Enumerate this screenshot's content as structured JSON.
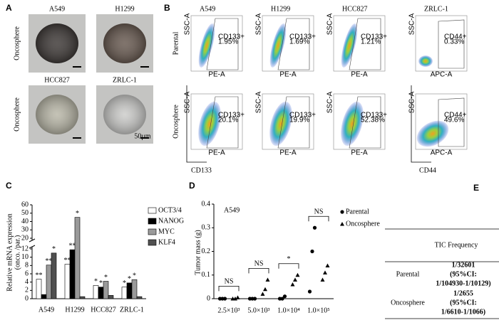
{
  "panel_a": {
    "letter": "A",
    "images": [
      {
        "label": "A549"
      },
      {
        "label": "H1299"
      },
      {
        "label": "HCC827"
      },
      {
        "label": "ZRLC-1"
      }
    ],
    "row_labels": [
      "Oncosphere",
      "Oncosphere"
    ],
    "scale_bar": "50μm"
  },
  "panel_b": {
    "letter": "B",
    "row_labels": [
      "Parental",
      "Oncosphere"
    ],
    "markers": [
      "CD133",
      "CD44"
    ],
    "columns": [
      {
        "label": "A549",
        "x_axis": "PE-A",
        "y_axis": "SSC-A",
        "gates": [
          [
            "CD133+",
            "1.95%"
          ],
          [
            "CD133+",
            "20.1%"
          ]
        ]
      },
      {
        "label": "H1299",
        "x_axis": "PE-A",
        "y_axis": "SSC-A",
        "gates": [
          [
            "CD133+",
            "1.69%"
          ],
          [
            "CD133+",
            "19.9%"
          ]
        ]
      },
      {
        "label": "HCC827",
        "x_axis": "PE-A",
        "y_axis": "SSC-A",
        "gates": [
          [
            "CD133+",
            "1.21%"
          ],
          [
            "CD133+",
            "52.38%"
          ]
        ]
      },
      {
        "label": "ZRLC-1",
        "x_axis": "APC-A",
        "y_axis": "SSC-A",
        "gates": [
          [
            "CD44+",
            "0.33%"
          ],
          [
            "CD44+",
            "49.6%"
          ]
        ]
      }
    ]
  },
  "chart_data": [
    {
      "type": "bar",
      "label": "C",
      "y_label": [
        "Relative mRNA expression",
        "(onco. /par.)"
      ],
      "categories": [
        "A549",
        "H1299",
        "HCC827",
        "ZRLC-1"
      ],
      "series": [
        {
          "name": "OCT3/4",
          "color": "#ffffff",
          "values": [
            4.7,
            8.3,
            3.2,
            2.8
          ],
          "significance": [
            "**",
            "**",
            "*",
            "*"
          ]
        },
        {
          "name": "NANOG",
          "color": "#000000",
          "values": [
            1.0,
            11.8,
            2.8,
            3.8
          ],
          "significance": [
            null,
            "**",
            "*",
            "*"
          ]
        },
        {
          "name": "MYC",
          "color": "#9a9a9a",
          "values": [
            8.1,
            45,
            4.2,
            4.6
          ],
          "significance": [
            "**",
            "*",
            "*",
            "*"
          ]
        },
        {
          "name": "KLF4",
          "color": "#505050",
          "values": [
            11,
            0.5,
            0.8,
            0.5
          ],
          "significance": [
            "*",
            null,
            null,
            null
          ]
        }
      ],
      "ylim": [
        0,
        60
      ],
      "ybreak": [
        12,
        20
      ],
      "yticks": [
        0,
        2,
        4,
        6,
        8,
        10,
        12,
        20,
        30,
        40,
        50,
        60
      ],
      "legend": "right"
    },
    {
      "type": "dot",
      "label": "D",
      "title": "A549",
      "y_label": "Tumor mass (g)",
      "categories": [
        "2.5×10³",
        "5.0×10³",
        "1.0×10⁴",
        "1.0×10⁵"
      ],
      "series": [
        {
          "name": "Parental",
          "marker": "circle",
          "color": "#000000",
          "values": [
            [
              0,
              0,
              0
            ],
            [
              0,
              0,
              0
            ],
            [
              0,
              0,
              0.01
            ],
            [
              0.03,
              0.2,
              0.3
            ]
          ]
        },
        {
          "name": "Oncosphere",
          "marker": "triangle",
          "color": "#000000",
          "values": [
            [
              0,
              0,
              0.005
            ],
            [
              0.02,
              0.04,
              0.08
            ],
            [
              0.06,
              0.08,
              0.1
            ],
            [
              0.08,
              0.11,
              0.14
            ]
          ]
        }
      ],
      "comparisons": [
        "NS",
        "NS",
        "*",
        "NS"
      ],
      "ylim": [
        0,
        0.4
      ],
      "yticks": [
        0,
        0.1,
        0.2,
        0.3,
        0.4
      ],
      "legend": "upper right"
    }
  ],
  "panel_e": {
    "letter": "E",
    "header": "TIC Frequency",
    "rows": [
      {
        "label": "Parental",
        "value": [
          "1/32601",
          "(95%CI:",
          "1/104930-1/10129)"
        ]
      },
      {
        "label": "Oncosphere",
        "value": [
          "1/2655",
          "(95%CI:",
          "1/6610-1/1066)"
        ]
      }
    ]
  }
}
